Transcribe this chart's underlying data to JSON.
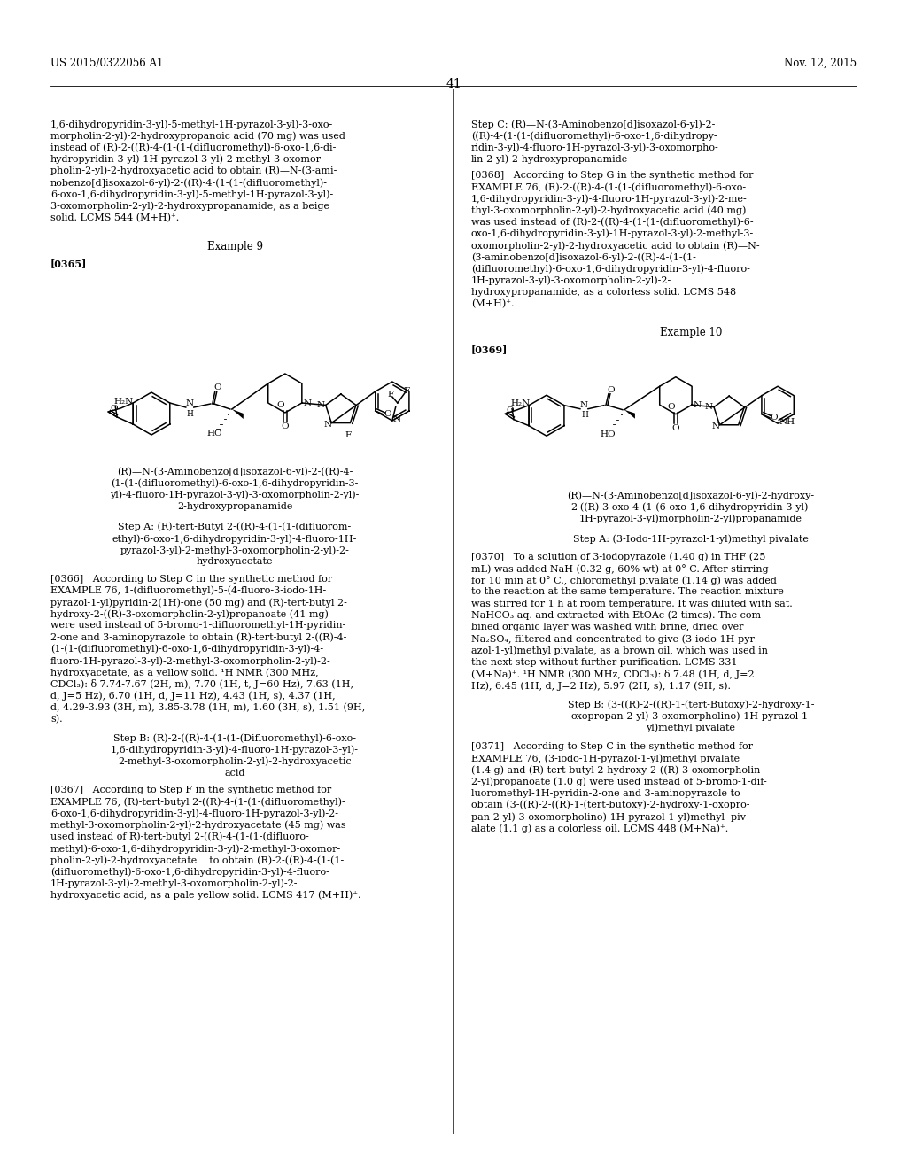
{
  "background_color": "#ffffff",
  "header_left": "US 2015/0322056 A1",
  "header_right": "Nov. 12, 2015",
  "page_number": "41",
  "left_col_text_top": [
    "1,6-dihydropyridin-3-yl)-5-methyl-1H-pyrazol-3-yl)-3-oxo-",
    "morpholin-2-yl)-2-hydroxypropanoic acid (70 mg) was used",
    "instead of (R)-2-((R)-4-(1-(1-(difluoromethyl)-6-oxo-1,6-di-",
    "hydropyridin-3-yl)-1H-pyrazol-3-yl)-2-methyl-3-oxomor-",
    "pholin-2-yl)-2-hydroxyacetic acid to obtain (R)—N-(3-ami-",
    "nobenzo[d]isoxazol-6-yl)-2-((R)-4-(1-(1-(difluoromethyl)-",
    "6-oxo-1,6-dihydropyridin-3-yl)-5-methyl-1H-pyrazol-3-yl)-",
    "3-oxomorpholin-2-yl)-2-hydroxypropanamide, as a beige",
    "solid. LCMS 544 (M+H)⁺."
  ],
  "right_col_text_top": [
    "Step C: (R)—N-(3-Aminobenzo[d]isoxazol-6-yl)-2-",
    "((R)-4-(1-(1-(difluoromethyl)-6-oxo-1,6-dihydropy-",
    "ridin-3-yl)-4-fluoro-1H-pyrazol-3-yl)-3-oxomorpho-",
    "lin-2-yl)-2-hydroxypropanamide"
  ],
  "para0368_lines": [
    "[0368]   According to Step G in the synthetic method for",
    "EXAMPLE 76, (R)-2-((R)-4-(1-(1-(difluoromethyl)-6-oxo-",
    "1,6-dihydropyridin-3-yl)-4-fluoro-1H-pyrazol-3-yl)-2-me-",
    "thyl-3-oxomorpholin-2-yl)-2-hydroxyacetic acid (40 mg)",
    "was used instead of (R)-2-((R)-4-(1-(1-(difluoromethyl)-6-",
    "oxo-1,6-dihydropyridin-3-yl)-1H-pyrazol-3-yl)-2-methyl-3-",
    "oxomorpholin-2-yl)-2-hydroxyacetic acid to obtain (R)—N-",
    "(3-aminobenzo[d]isoxazol-6-yl)-2-((R)-4-(1-(1-",
    "(difluoromethyl)-6-oxo-1,6-dihydropyridin-3-yl)-4-fluoro-",
    "1H-pyrazol-3-yl)-3-oxomorpholin-2-yl)-2-",
    "hydroxypropanamide, as a colorless solid. LCMS 548",
    "(M+H)⁺."
  ],
  "para0366_lines": [
    "[0366]   According to Step C in the synthetic method for",
    "EXAMPLE 76, 1-(difluoromethyl)-5-(4-fluoro-3-iodo-1H-",
    "pyrazol-1-yl)pyridin-2(1H)-one (50 mg) and (R)-tert-butyl 2-",
    "hydroxy-2-((R)-3-oxomorpholin-2-yl)propanoate (41 mg)",
    "were used instead of 5-bromo-1-difluoromethyl-1H-pyridin-",
    "2-one and 3-aminopyrazole to obtain (R)-tert-butyl 2-((R)-4-",
    "(1-(1-(difluoromethyl)-6-oxo-1,6-dihydropyridin-3-yl)-4-",
    "fluoro-1H-pyrazol-3-yl)-2-methyl-3-oxomorpholin-2-yl)-2-",
    "hydroxyacetate, as a yellow solid. ¹H NMR (300 MHz,",
    "CDCl₃): δ 7.74-7.67 (2H, m), 7.70 (1H, t, J=60 Hz), 7.63 (1H,",
    "d, J=5 Hz), 6.70 (1H, d, J=11 Hz), 4.43 (1H, s), 4.37 (1H,",
    "d, 4.29-3.93 (3H, m), 3.85-3.78 (1H, m), 1.60 (3H, s), 1.51 (9H,",
    "s)."
  ],
  "para0367_lines": [
    "[0367]   According to Step F in the synthetic method for",
    "EXAMPLE 76, (R)-tert-butyl 2-((R)-4-(1-(1-(difluoromethyl)-",
    "6-oxo-1,6-dihydropyridin-3-yl)-4-fluoro-1H-pyrazol-3-yl)-2-",
    "methyl-3-oxomorpholin-2-yl)-2-hydroxyacetate (45 mg) was",
    "used instead of R)-tert-butyl 2-((R)-4-(1-(1-(difluoro-",
    "methyl)-6-oxo-1,6-dihydropyridin-3-yl)-2-methyl-3-oxomor-",
    "pholin-2-yl)-2-hydroxyacetate    to obtain (R)-2-((R)-4-(1-(1-",
    "(difluoromethyl)-6-oxo-1,6-dihydropyridin-3-yl)-4-fluoro-",
    "1H-pyrazol-3-yl)-2-methyl-3-oxomorpholin-2-yl)-2-",
    "hydroxyacetic acid, as a pale yellow solid. LCMS 417 (M+H)⁺."
  ],
  "para0370_lines": [
    "[0370]   To a solution of 3-iodopyrazole (1.40 g) in THF (25",
    "mL) was added NaH (0.32 g, 60% wt) at 0° C. After stirring",
    "for 10 min at 0° C., chloromethyl pivalate (1.14 g) was added",
    "to the reaction at the same temperature. The reaction mixture",
    "was stirred for 1 h at room temperature. It was diluted with sat.",
    "NaHCO₃ aq. and extracted with EtOAc (2 times). The com-",
    "bined organic layer was washed with brine, dried over",
    "Na₂SO₄, filtered and concentrated to give (3-iodo-1H-pyr-",
    "azol-1-yl)methyl pivalate, as a brown oil, which was used in",
    "the next step without further purification. LCMS 331",
    "(M+Na)⁺. ¹H NMR (300 MHz, CDCl₃): δ 7.48 (1H, d, J=2",
    "Hz), 6.45 (1H, d, J=2 Hz), 5.97 (2H, s), 1.17 (9H, s)."
  ],
  "para0371_lines": [
    "[0371]   According to Step C in the synthetic method for",
    "EXAMPLE 76, (3-iodo-1H-pyrazol-1-yl)methyl pivalate",
    "(1.4 g) and (R)-tert-butyl 2-hydroxy-2-((R)-3-oxomorpholin-",
    "2-yl)propanoate (1.0 g) were used instead of 5-bromo-1-dif-",
    "luoromethyl-1H-pyridin-2-one and 3-aminopyrazole to",
    "obtain (3-((R)-2-((R)-1-(tert-butoxy)-2-hydroxy-1-oxopro-",
    "pan-2-yl)-3-oxomorpholino)-1H-pyrazol-1-yl)methyl  piv-",
    "alate (1.1 g) as a colorless oil. LCMS 448 (M+Na)⁺."
  ]
}
